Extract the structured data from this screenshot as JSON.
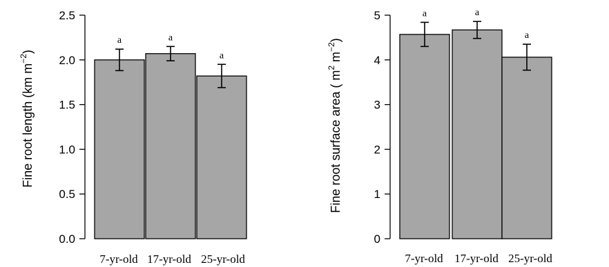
{
  "chart_data": [
    {
      "type": "bar",
      "categories": [
        "7-yr-old",
        "17-yr-old",
        "25-yr-old"
      ],
      "values": [
        2.0,
        2.07,
        1.82
      ],
      "errors": [
        0.12,
        0.08,
        0.13
      ],
      "significance": [
        "a",
        "a",
        "a"
      ],
      "ylabel": {
        "main": "Fine root length (km m",
        "sup": "−2",
        "close": ")"
      },
      "ylim": [
        0,
        2.5
      ],
      "yticks": [
        0.0,
        0.5,
        1.0,
        1.5,
        2.0,
        2.5
      ],
      "ytick_labels": [
        "0.0",
        "0.5",
        "1.0",
        "1.5",
        "2.0",
        "2.5"
      ],
      "bar_color": "#a6a6a6"
    },
    {
      "type": "bar",
      "categories": [
        "7-yr-old",
        "17-yr-old",
        "25-yr-old"
      ],
      "values": [
        4.57,
        4.67,
        4.06
      ],
      "errors": [
        0.27,
        0.19,
        0.29
      ],
      "significance": [
        "a",
        "a",
        "a"
      ],
      "ylabel": {
        "main": "Fine root surface area ( m",
        "sup": "2",
        "mid": " m",
        "sup2": "−2",
        "close": ")"
      },
      "ylim": [
        0,
        5
      ],
      "yticks": [
        0,
        1,
        2,
        3,
        4,
        5
      ],
      "ytick_labels": [
        "0",
        "1",
        "2",
        "3",
        "4",
        "5"
      ],
      "bar_color": "#a6a6a6"
    }
  ]
}
